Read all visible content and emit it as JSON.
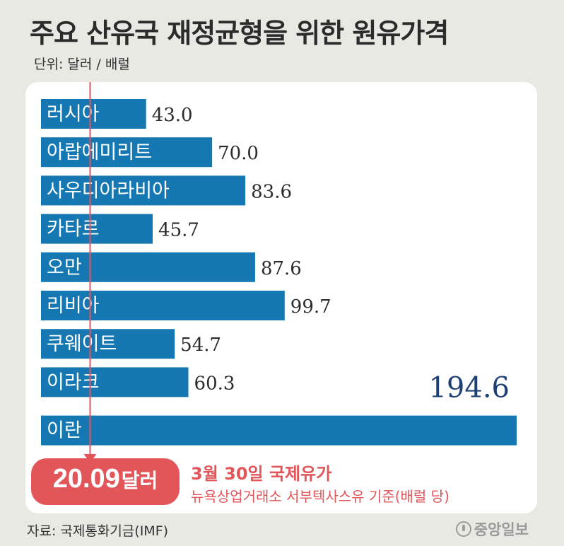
{
  "header": {
    "title": "주요 산유국 재정균형을 위한 원유가격",
    "unit": "단위: 달러 / 배럴"
  },
  "colors": {
    "bar": "#1578b3",
    "reference": "#e2565a",
    "highlight_value": "#1d3f73"
  },
  "chart_data": {
    "type": "bar",
    "orientation": "horizontal",
    "title": "주요 산유국 재정균형을 위한 원유가격",
    "unit": "단위: 달러 / 배럴",
    "categories": [
      "러시아",
      "아랍에미리트",
      "사우디아라비아",
      "카타르",
      "오만",
      "리비아",
      "쿠웨이트",
      "이라크",
      "이란"
    ],
    "values": [
      43.0,
      70.0,
      83.6,
      45.7,
      87.6,
      99.7,
      54.7,
      60.3,
      194.6
    ],
    "value_labels": [
      "43.0",
      "70.0",
      "83.6",
      "45.7",
      "87.6",
      "99.7",
      "54.7",
      "60.3",
      "194.6"
    ],
    "xlim": [
      0,
      194.6
    ],
    "grid": false,
    "reference_line": {
      "value": 20.09,
      "label_value": "20.09",
      "label_unit": "달러",
      "title": "3월 30일 국제유가",
      "subtitle": "뉴욕상업거래소 서부텍사스유 기준(배럴 당)"
    }
  },
  "footer": {
    "source": "자료: 국제통화기금(IMF)",
    "logo": "중앙일보"
  }
}
